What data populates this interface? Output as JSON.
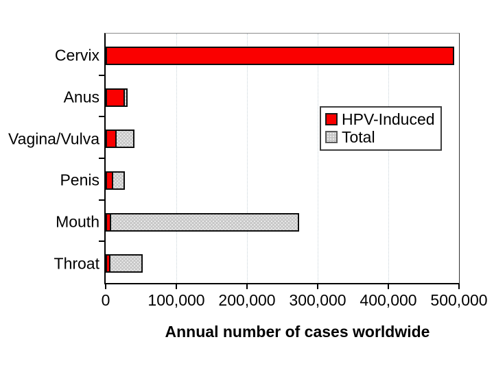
{
  "chart_data": {
    "type": "bar",
    "orientation": "horizontal",
    "title": "",
    "xlabel": "Annual number of cases worldwide",
    "ylabel": "",
    "categories": [
      "Cervix",
      "Anus",
      "Vagina/Vulva",
      "Penis",
      "Mouth",
      "Throat"
    ],
    "series": [
      {
        "name": "HPV-Induced",
        "color": "#fa0000",
        "values": [
          493000,
          27000,
          16000,
          11000,
          8000,
          6500
        ]
      },
      {
        "name": "Total",
        "color": "#c6c6c6",
        "values": [
          493000,
          31000,
          41000,
          27000,
          274000,
          52000
        ]
      }
    ],
    "xlim": [
      0,
      500000
    ],
    "xticks": [
      0,
      100000,
      200000,
      300000,
      400000,
      500000
    ],
    "xtick_labels": [
      "0",
      "100,000",
      "200,000",
      "300,000",
      "400,000",
      "500,000"
    ],
    "grid": "vertical-dotted",
    "legend_position": "inside-middle-right"
  },
  "colors": {
    "hpv_bar": "#fa0000",
    "total_bar": "#c6c6c6",
    "bar_outline": "#0d0d0d",
    "gridline": "#c7d2d8",
    "axis": "#000000",
    "background": "#ffffff"
  }
}
